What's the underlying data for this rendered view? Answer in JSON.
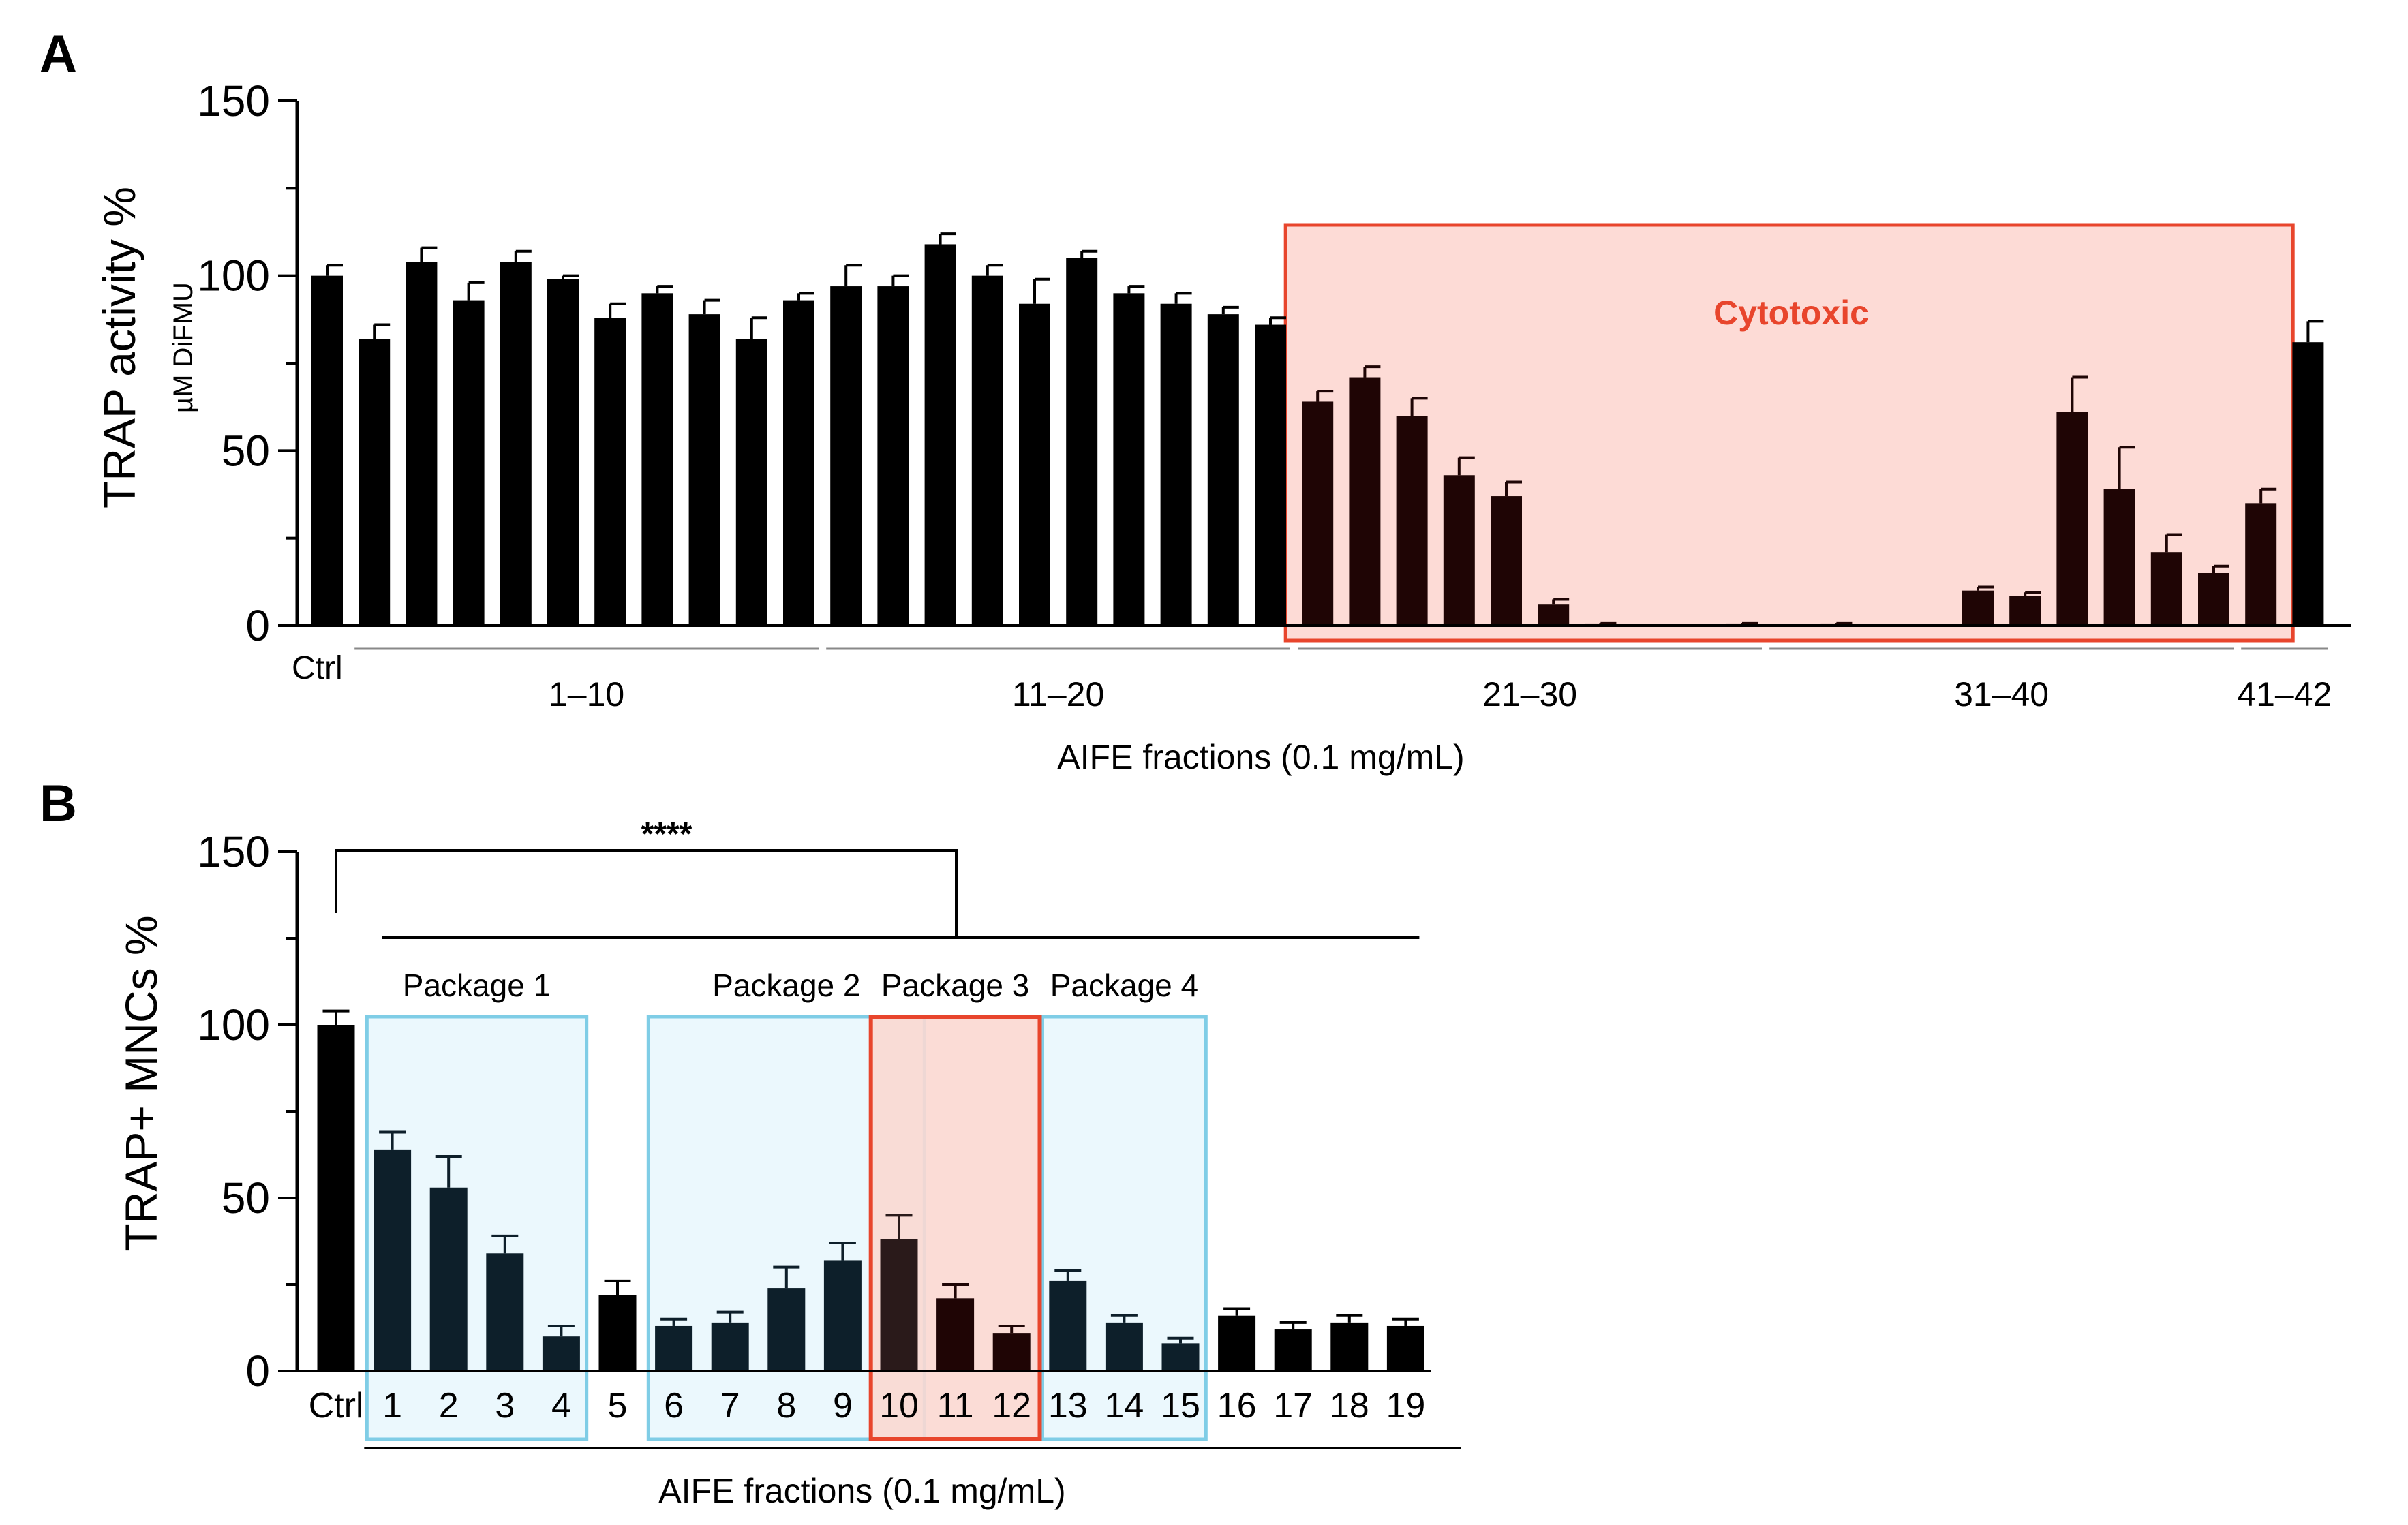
{
  "colors": {
    "bar": "#000000",
    "bar_in_cytotoxic": "#1f0505",
    "bar_in_package": "#0d1f2a",
    "cytotoxic_fill": "#fddbd6",
    "cytotoxic_border": "#e8452c",
    "cytotoxic_text": "#e8452c",
    "package_fill": "#ebf8fd",
    "package_border": "#7fcde6",
    "package3_fill": "#fbd8d2",
    "package3_border": "#e8452c"
  },
  "chart_data": [
    {
      "type": "bar",
      "panel": "A",
      "ylabel": "TRAP activity %",
      "ylabel_sub": "µM DiFMU",
      "xlabel": "AIFE fractions (0.1 mg/mL)",
      "ylim": [
        0,
        150
      ],
      "yticks": [
        0,
        50,
        100,
        150
      ],
      "control_label": "Ctrl",
      "group_labels": [
        "1–10",
        "11–20",
        "21–30",
        "31–40",
        "41–42"
      ],
      "values": [
        100,
        82,
        104,
        93,
        104,
        99,
        88,
        95,
        89,
        82,
        93,
        97,
        97,
        109,
        100,
        92,
        105,
        95,
        92,
        89,
        86,
        64,
        71,
        60,
        43,
        37,
        6,
        0.4,
        0.2,
        0.2,
        0.4,
        0.2,
        0.4,
        0.2,
        0.2,
        10,
        8.5,
        61,
        39,
        21,
        15,
        35,
        81
      ],
      "errors": [
        3,
        4,
        4,
        5,
        3,
        1,
        4,
        2,
        4,
        6,
        2,
        6,
        3,
        3,
        3,
        7,
        2,
        2,
        3,
        2,
        2,
        3,
        3,
        5,
        5,
        4,
        1.5,
        0.2,
        0.1,
        0.1,
        0.2,
        0.1,
        0.2,
        0.1,
        0.1,
        1,
        1,
        10,
        12,
        5,
        2,
        4,
        6
      ],
      "annotation": "Cytotoxic",
      "annotation_span": [
        21,
        41
      ]
    },
    {
      "type": "bar",
      "panel": "B",
      "ylabel": "TRAP+ MNCs %",
      "xlabel": "AIFE fractions (0.1 mg/mL)",
      "ylim": [
        0,
        150
      ],
      "yticks": [
        0,
        50,
        100,
        150
      ],
      "categories": [
        "Ctrl",
        "1",
        "2",
        "3",
        "4",
        "5",
        "6",
        "7",
        "8",
        "9",
        "10",
        "11",
        "12",
        "13",
        "14",
        "15",
        "16",
        "17",
        "18",
        "19"
      ],
      "values": [
        100,
        64,
        53,
        34,
        10,
        22,
        13,
        14,
        24,
        32,
        38,
        21,
        11,
        26,
        14,
        8,
        16,
        12,
        14,
        13
      ],
      "errors": [
        4,
        5,
        9,
        5,
        3,
        4,
        2,
        3,
        6,
        5,
        7,
        4,
        2,
        3,
        2,
        1.5,
        2,
        2,
        2,
        2
      ],
      "significance": "****",
      "packages": [
        {
          "label": "Package 1",
          "from": 1,
          "to": 4
        },
        {
          "label": "Package 2",
          "from": 6,
          "to": 10
        },
        {
          "label": "Package 3",
          "from": 10,
          "to": 12
        },
        {
          "label": "Package 4",
          "from": 13,
          "to": 15
        }
      ]
    }
  ]
}
